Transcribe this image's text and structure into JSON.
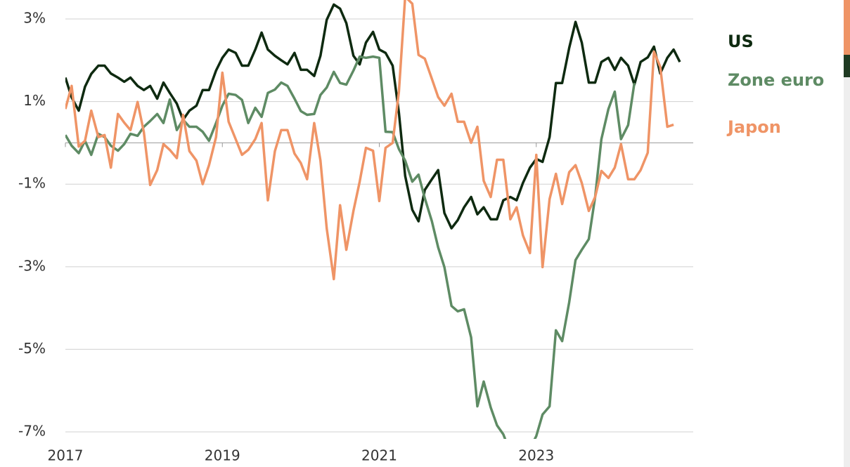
{
  "chart_data": {
    "type": "line",
    "x": [
      2017.0,
      2017.08,
      2017.17,
      2017.25,
      2017.33,
      2017.42,
      2017.5,
      2017.58,
      2017.67,
      2017.75,
      2017.83,
      2017.92,
      2018.0,
      2018.08,
      2018.17,
      2018.25,
      2018.33,
      2018.42,
      2018.5,
      2018.58,
      2018.67,
      2018.75,
      2018.83,
      2018.92,
      2019.0,
      2019.08,
      2019.17,
      2019.25,
      2019.33,
      2019.42,
      2019.5,
      2019.58,
      2019.67,
      2019.75,
      2019.83,
      2019.92,
      2020.0,
      2020.08,
      2020.17,
      2020.25,
      2020.33,
      2020.42,
      2020.5,
      2020.58,
      2020.67,
      2020.75,
      2020.83,
      2020.92,
      2021.0,
      2021.08,
      2021.17,
      2021.25,
      2021.33,
      2021.42,
      2021.5,
      2021.58,
      2021.67,
      2021.75,
      2021.83,
      2021.92,
      2022.0,
      2022.08,
      2022.17,
      2022.25,
      2022.33,
      2022.42,
      2022.5,
      2022.58,
      2022.67,
      2022.75,
      2022.83,
      2022.92,
      2023.0,
      2023.08,
      2023.17,
      2023.25,
      2023.33,
      2023.42,
      2023.5,
      2023.58,
      2023.67,
      2023.75,
      2023.83,
      2023.92,
      2024.0,
      2024.08,
      2024.17,
      2024.25,
      2024.33,
      2024.42,
      2024.5,
      2024.58,
      2024.67,
      2024.75,
      2024.83
    ],
    "series": [
      {
        "name": "US",
        "color": "#0e2a10",
        "values": [
          1.58,
          1.1,
          0.78,
          1.36,
          1.67,
          1.87,
          1.87,
          1.68,
          1.58,
          1.48,
          1.58,
          1.38,
          1.28,
          1.38,
          1.07,
          1.46,
          1.21,
          0.95,
          0.56,
          0.78,
          0.9,
          1.28,
          1.28,
          1.75,
          2.06,
          2.26,
          2.18,
          1.87,
          1.87,
          2.26,
          2.67,
          2.26,
          2.11,
          2.0,
          1.9,
          2.18,
          1.77,
          1.77,
          1.62,
          2.11,
          2.98,
          3.35,
          3.25,
          2.9,
          2.11,
          1.9,
          2.43,
          2.69,
          2.26,
          2.18,
          1.87,
          0.73,
          -0.8,
          -1.62,
          -1.9,
          -1.14,
          -0.88,
          -0.66,
          -1.7,
          -2.07,
          -1.87,
          -1.56,
          -1.31,
          -1.73,
          -1.56,
          -1.85,
          -1.85,
          -1.39,
          -1.31,
          -1.39,
          -0.97,
          -0.6,
          -0.39,
          -0.46,
          0.14,
          1.45,
          1.45,
          2.3,
          2.93,
          2.43,
          1.46,
          1.46,
          1.96,
          2.06,
          1.77,
          2.06,
          1.87,
          1.41,
          1.96,
          2.07,
          2.33,
          1.68,
          2.06,
          2.26,
          1.96
        ]
      },
      {
        "name": "Zone euro",
        "color": "#5e8b64",
        "values": [
          0.19,
          -0.07,
          -0.25,
          0.05,
          -0.29,
          0.22,
          0.14,
          -0.07,
          -0.19,
          -0.03,
          0.22,
          0.17,
          0.39,
          0.53,
          0.7,
          0.48,
          1.05,
          0.31,
          0.56,
          0.39,
          0.39,
          0.27,
          0.05,
          0.48,
          0.9,
          1.19,
          1.16,
          1.04,
          0.48,
          0.85,
          0.63,
          1.21,
          1.29,
          1.46,
          1.38,
          1.07,
          0.77,
          0.68,
          0.7,
          1.16,
          1.34,
          1.72,
          1.45,
          1.41,
          1.75,
          2.09,
          2.06,
          2.09,
          2.06,
          0.27,
          0.26,
          -0.15,
          -0.43,
          -0.94,
          -0.77,
          -1.34,
          -1.9,
          -2.53,
          -3.01,
          -3.95,
          -4.08,
          -4.03,
          -4.71,
          -6.38,
          -5.78,
          -6.41,
          -6.84,
          -7.06,
          -7.5,
          -7.7,
          -7.6,
          -7.4,
          -7.1,
          -6.58,
          -6.38,
          -4.54,
          -4.8,
          -3.86,
          -2.84,
          -2.59,
          -2.33,
          -1.31,
          0.09,
          0.82,
          1.24,
          0.09,
          0.43,
          1.45,
          null,
          null,
          null,
          null,
          null,
          null,
          null
        ]
      },
      {
        "name": "Japon",
        "color": "#ef9466",
        "values": [
          0.82,
          1.38,
          -0.09,
          0.05,
          0.78,
          0.14,
          0.19,
          -0.6,
          0.7,
          0.49,
          0.31,
          0.99,
          0.26,
          -1.02,
          -0.66,
          -0.03,
          -0.17,
          -0.37,
          0.68,
          -0.2,
          -0.43,
          -1.0,
          -0.54,
          0.14,
          1.7,
          0.51,
          0.09,
          -0.29,
          -0.17,
          0.09,
          0.48,
          -1.39,
          -0.2,
          0.31,
          0.31,
          -0.26,
          -0.49,
          -0.88,
          0.48,
          -0.43,
          -2.07,
          -3.3,
          -1.51,
          -2.59,
          -1.65,
          -0.94,
          -0.12,
          -0.19,
          -1.41,
          -0.12,
          0.0,
          1.24,
          3.54,
          3.37,
          2.13,
          2.04,
          1.55,
          1.11,
          0.9,
          1.19,
          0.51,
          0.51,
          0.0,
          0.39,
          -0.92,
          -1.31,
          -0.41,
          -0.41,
          -1.85,
          -1.56,
          -2.24,
          -2.67,
          -0.29,
          -3.01,
          -1.36,
          -0.75,
          -1.48,
          -0.71,
          -0.54,
          -0.97,
          -1.65,
          -1.31,
          -0.68,
          -0.85,
          -0.6,
          -0.03,
          -0.88,
          -0.88,
          -0.66,
          -0.24,
          2.21,
          1.84,
          0.39,
          0.44,
          null
        ]
      }
    ],
    "xlim": [
      2017,
      2025
    ],
    "xticks": [
      2017,
      2019,
      2021,
      2023
    ],
    "ylim": [
      -7.17,
      3.46
    ],
    "yticks": [
      {
        "value": 3,
        "label": "3%"
      },
      {
        "value": 1,
        "label": "1%"
      },
      {
        "value": -1,
        "label": "-1%"
      },
      {
        "value": -3,
        "label": "-3%"
      },
      {
        "value": -5,
        "label": "-5%"
      },
      {
        "value": -7,
        "label": "-7%"
      }
    ],
    "grid": true,
    "legend": "right"
  }
}
